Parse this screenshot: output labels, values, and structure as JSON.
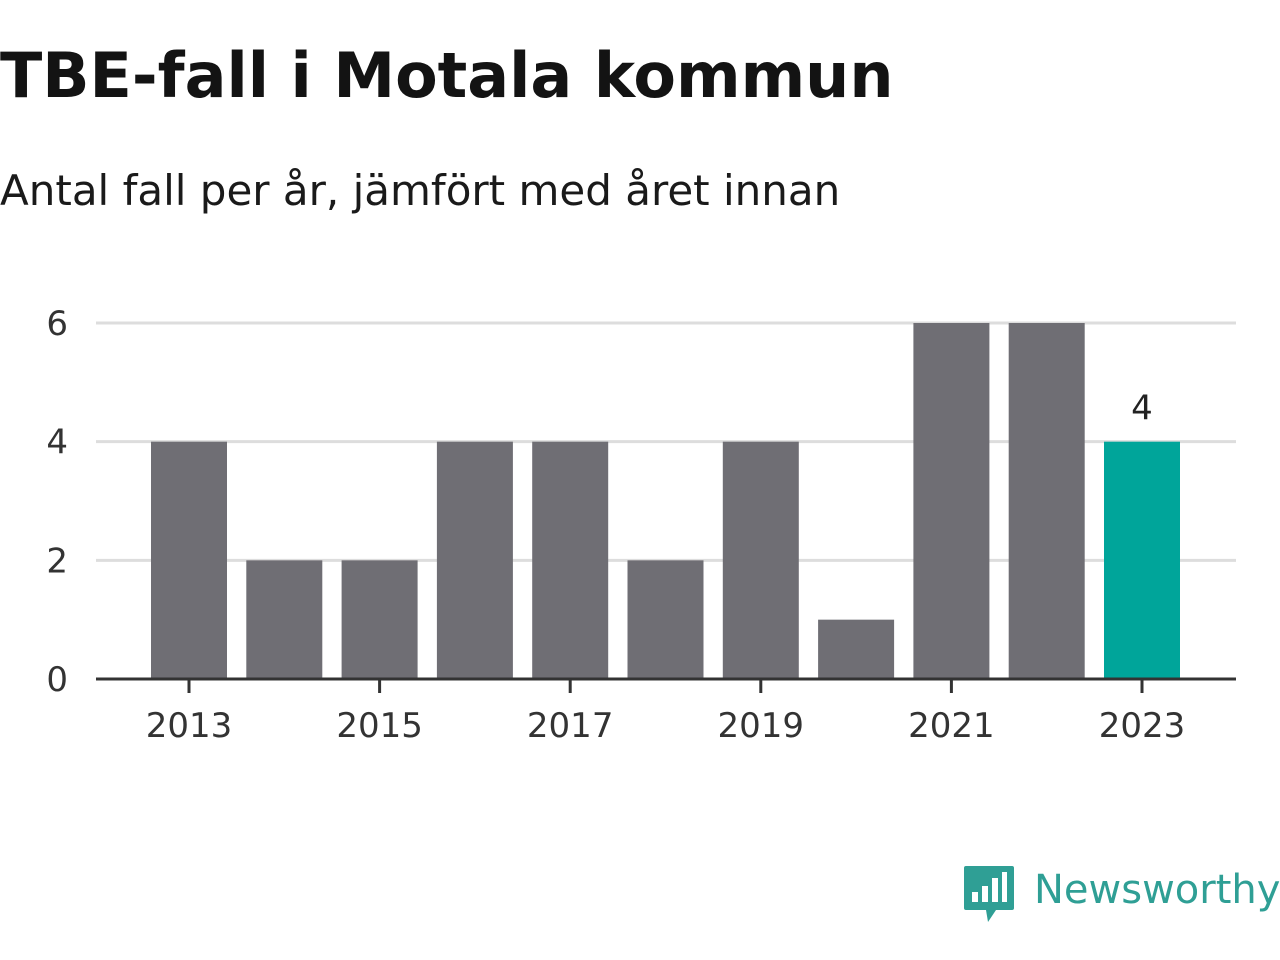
{
  "header": {
    "title": "TBE-fall i Motala kommun",
    "subtitle": "Antal fall per år, jämfört med året innan"
  },
  "colors": {
    "bar": "#6f6e74",
    "highlight": "#00a59a",
    "grid": "#dddddd",
    "axis": "#333333",
    "brand": "#2f9f95"
  },
  "chart_data": {
    "type": "bar",
    "title": "TBE-fall i Motala kommun",
    "subtitle": "Antal fall per år, jämfört med året innan",
    "xlabel": "",
    "ylabel": "",
    "categories": [
      "2013",
      "2014",
      "2015",
      "2016",
      "2017",
      "2018",
      "2019",
      "2020",
      "2021",
      "2022",
      "2023"
    ],
    "values": [
      4,
      2,
      2,
      4,
      4,
      2,
      4,
      1,
      6,
      6,
      4
    ],
    "ylim": [
      0,
      6
    ],
    "y_ticks": [
      "0",
      "2",
      "4",
      "6"
    ],
    "x_tick_labels": [
      "2013",
      "2015",
      "2017",
      "2019",
      "2021",
      "2023"
    ],
    "highlight_category": "2023",
    "data_labels": [
      {
        "category": "2023",
        "text": "4"
      }
    ],
    "grid": true
  },
  "brand": {
    "name": "Newsworthy",
    "icon": "newsworthy-logo-icon"
  }
}
